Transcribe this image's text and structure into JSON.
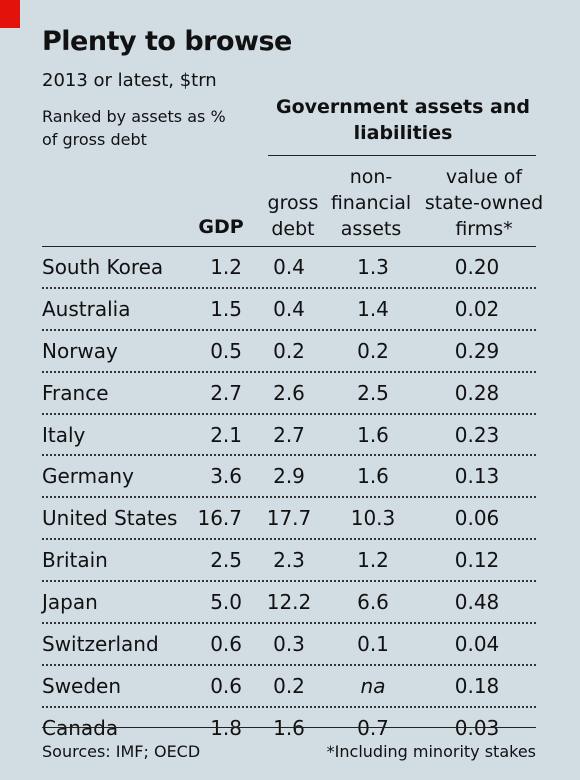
{
  "title": "Plenty to browse",
  "subtitle": "2013 or latest, $trn",
  "ranked_note": "Ranked by assets as % of gross debt",
  "group_header": "Government assets and liabilities",
  "columns": {
    "gdp": "GDP",
    "gross_debt_1": "gross",
    "gross_debt_2": "debt",
    "nfa_1": "non-",
    "nfa_2": "financial",
    "nfa_3": "assets",
    "sof_1": "value of",
    "sof_2": "state-owned",
    "sof_3": "firms*"
  },
  "rows": [
    {
      "country": "South Korea",
      "gdp": "1.2",
      "gross_debt": "0.4",
      "non_financial_assets": "1.3",
      "state_owned_firms": "0.20"
    },
    {
      "country": "Australia",
      "gdp": "1.5",
      "gross_debt": "0.4",
      "non_financial_assets": "1.4",
      "state_owned_firms": "0.02"
    },
    {
      "country": "Norway",
      "gdp": "0.5",
      "gross_debt": "0.2",
      "non_financial_assets": "0.2",
      "state_owned_firms": "0.29"
    },
    {
      "country": "France",
      "gdp": "2.7",
      "gross_debt": "2.6",
      "non_financial_assets": "2.5",
      "state_owned_firms": "0.28"
    },
    {
      "country": "Italy",
      "gdp": "2.1",
      "gross_debt": "2.7",
      "non_financial_assets": "1.6",
      "state_owned_firms": "0.23"
    },
    {
      "country": "Germany",
      "gdp": "3.6",
      "gross_debt": "2.9",
      "non_financial_assets": "1.6",
      "state_owned_firms": "0.13"
    },
    {
      "country": "United States",
      "gdp": "16.7",
      "gross_debt": "17.7",
      "non_financial_assets": "10.3",
      "state_owned_firms": "0.06"
    },
    {
      "country": "Britain",
      "gdp": "2.5",
      "gross_debt": "2.3",
      "non_financial_assets": "1.2",
      "state_owned_firms": "0.12"
    },
    {
      "country": "Japan",
      "gdp": "5.0",
      "gross_debt": "12.2",
      "non_financial_assets": "6.6",
      "state_owned_firms": "0.48"
    },
    {
      "country": "Switzerland",
      "gdp": "0.6",
      "gross_debt": "0.3",
      "non_financial_assets": "0.1",
      "state_owned_firms": "0.04"
    },
    {
      "country": "Sweden",
      "gdp": "0.6",
      "gross_debt": "0.2",
      "non_financial_assets": "na",
      "state_owned_firms": "0.18"
    },
    {
      "country": "Canada",
      "gdp": "1.8",
      "gross_debt": "1.6",
      "non_financial_assets": "0.7",
      "state_owned_firms": "0.03"
    }
  ],
  "sources": "Sources: IMF; OECD",
  "footnote": "*Including minority stakes",
  "colors": {
    "background": "#d2dce3",
    "accent": "#e3120b"
  }
}
